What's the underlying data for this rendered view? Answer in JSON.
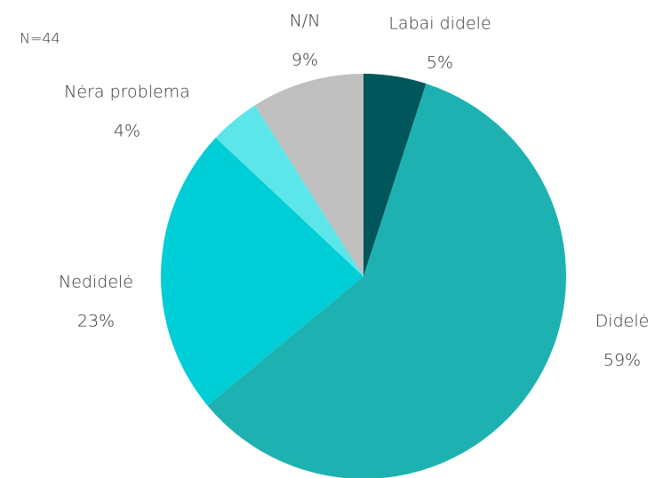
{
  "chart_data": {
    "type": "pie",
    "annotation": "N=44",
    "categories": [
      "Labai didelė",
      "Didelė",
      "Nedidelė",
      "Nėra problema",
      "N/N"
    ],
    "values": [
      5,
      59,
      23,
      4,
      9
    ],
    "value_labels": [
      "5%",
      "59%",
      "23%",
      "4%",
      "9%"
    ],
    "colors": [
      "#00575b",
      "#1db2b1",
      "#00ced6",
      "#5de6ea",
      "#bfbfbf"
    ]
  }
}
